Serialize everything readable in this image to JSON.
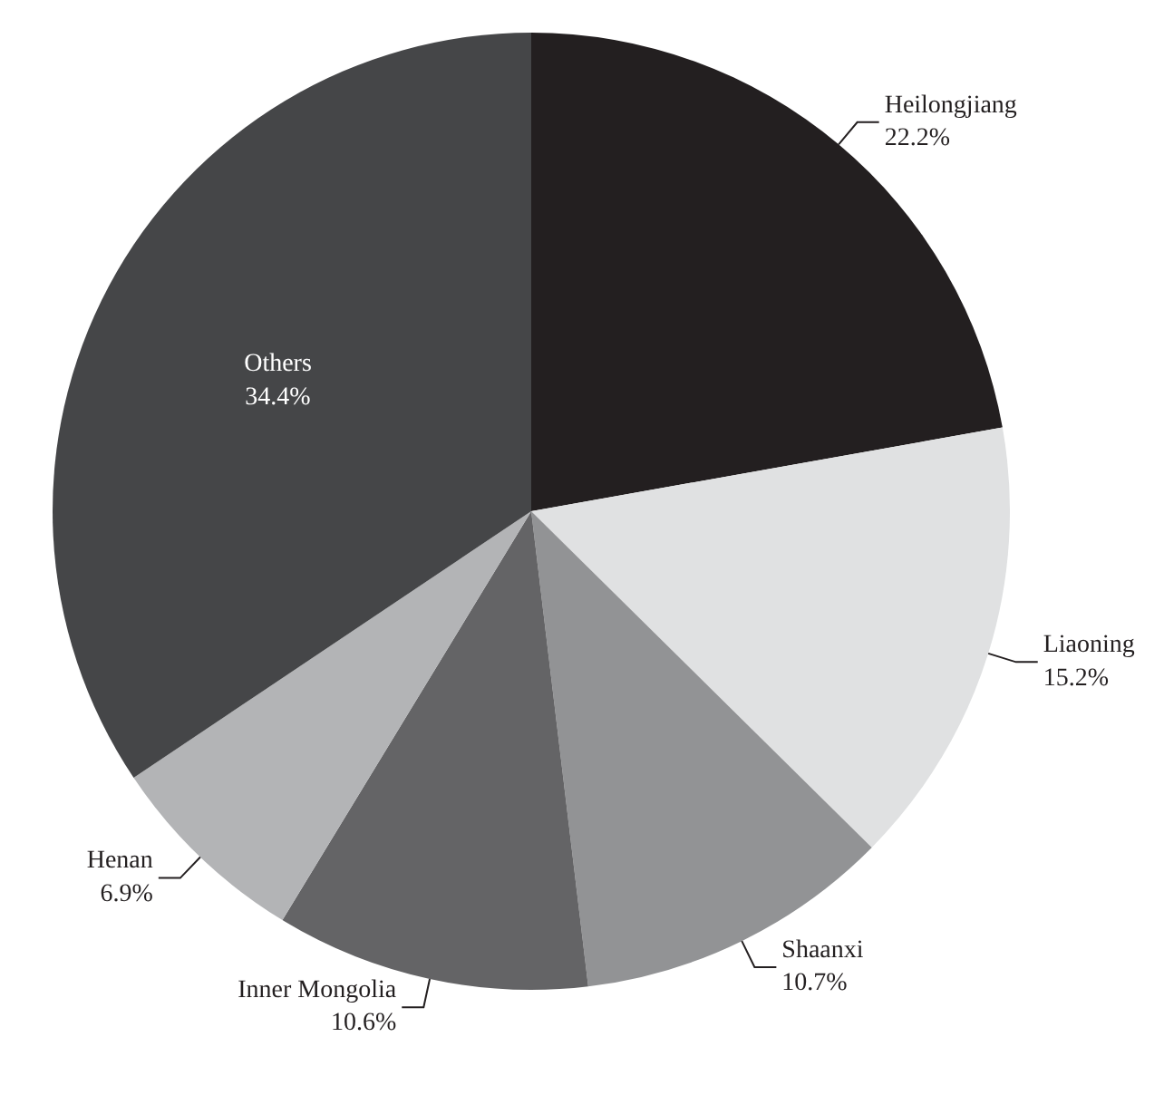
{
  "chart_data": {
    "type": "pie",
    "categories": [
      "Heilongjiang",
      "Liaoning",
      "Shaanxi",
      "Inner Mongolia",
      "Henan",
      "Others"
    ],
    "values": [
      22.2,
      15.2,
      10.7,
      10.6,
      6.9,
      34.4
    ],
    "value_labels": [
      "22.2%",
      "15.2%",
      "10.7%",
      "10.6%",
      "6.9%",
      "34.4%"
    ],
    "colors": [
      "#231f20",
      "#e0e1e2",
      "#929395",
      "#646466",
      "#b3b4b6",
      "#454648"
    ]
  }
}
